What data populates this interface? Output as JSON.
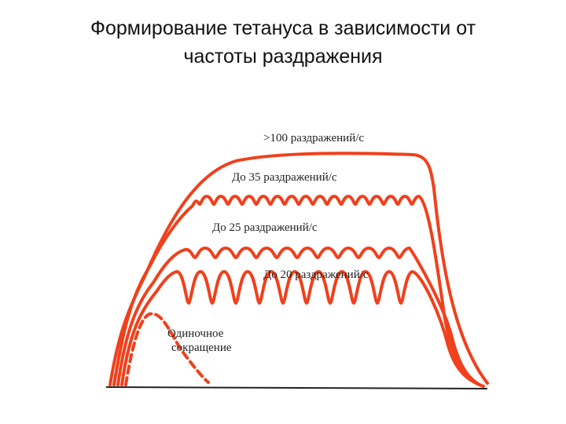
{
  "title": [
    "Формирование тетануса в зависимости от",
    "частоты раздражения"
  ],
  "curves": [
    {
      "label": ">100 раздражений/с"
    },
    {
      "label": "До 35 раздражений/с"
    },
    {
      "label": "До 25 раздражений/с"
    },
    {
      "label": "До 20 раздражений/с"
    }
  ],
  "single": [
    "Одиночное",
    "сокращение"
  ]
}
